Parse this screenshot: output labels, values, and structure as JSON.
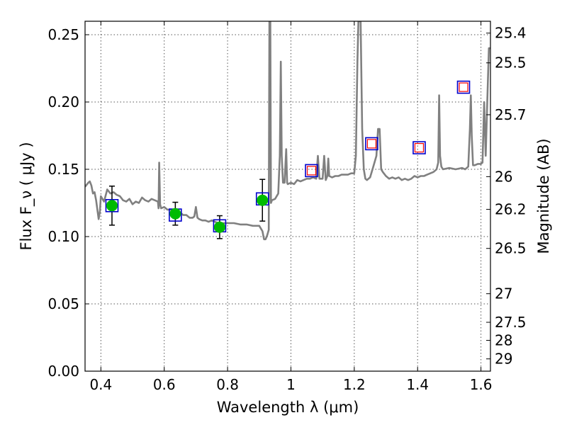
{
  "chart_data": {
    "type": "line",
    "xlabel": "Wavelength  λ (μm)",
    "ylabel": "Flux  F_ν  ( μJy )",
    "y2label": "Magnitude (AB)",
    "xlim": [
      0.35,
      1.63
    ],
    "ylim": [
      0.0,
      0.26
    ],
    "grid": true,
    "x_ticks": [
      {
        "value": 0.4,
        "label": "0.4"
      },
      {
        "value": 0.6,
        "label": "0.6"
      },
      {
        "value": 0.8,
        "label": "0.8"
      },
      {
        "value": 1.0,
        "label": "1"
      },
      {
        "value": 1.2,
        "label": "1.2"
      },
      {
        "value": 1.4,
        "label": "1.4"
      },
      {
        "value": 1.6,
        "label": "1.6"
      }
    ],
    "y_ticks": [
      {
        "value": 0.0,
        "label": "0.00"
      },
      {
        "value": 0.05,
        "label": "0.05"
      },
      {
        "value": 0.1,
        "label": "0.10"
      },
      {
        "value": 0.15,
        "label": "0.15"
      },
      {
        "value": 0.2,
        "label": "0.20"
      },
      {
        "value": 0.25,
        "label": "0.25"
      }
    ],
    "mag_ticks": [
      {
        "value": 25.4,
        "label": "25.4"
      },
      {
        "value": 25.5,
        "label": "25.5"
      },
      {
        "value": 25.7,
        "label": "25.7"
      },
      {
        "value": 26,
        "label": "26"
      },
      {
        "value": 26.2,
        "label": "26.2"
      },
      {
        "value": 26.5,
        "label": "26.5"
      },
      {
        "value": 27,
        "label": "27"
      },
      {
        "value": 27.5,
        "label": "27.5"
      },
      {
        "value": 28,
        "label": "28"
      },
      {
        "value": 29,
        "label": "29"
      }
    ],
    "model_spectrum": {
      "color": "#808080",
      "points": [
        [
          0.35,
          0.137
        ],
        [
          0.36,
          0.14
        ],
        [
          0.365,
          0.141
        ],
        [
          0.37,
          0.138
        ],
        [
          0.375,
          0.132
        ],
        [
          0.38,
          0.133
        ],
        [
          0.385,
          0.127
        ],
        [
          0.39,
          0.118
        ],
        [
          0.393,
          0.113
        ],
        [
          0.397,
          0.119
        ],
        [
          0.4,
          0.13
        ],
        [
          0.41,
          0.126
        ],
        [
          0.42,
          0.135
        ],
        [
          0.43,
          0.132
        ],
        [
          0.44,
          0.133
        ],
        [
          0.45,
          0.131
        ],
        [
          0.46,
          0.13
        ],
        [
          0.47,
          0.127
        ],
        [
          0.48,
          0.126
        ],
        [
          0.49,
          0.128
        ],
        [
          0.5,
          0.124
        ],
        [
          0.51,
          0.126
        ],
        [
          0.52,
          0.125
        ],
        [
          0.53,
          0.129
        ],
        [
          0.54,
          0.127
        ],
        [
          0.55,
          0.126
        ],
        [
          0.56,
          0.128
        ],
        [
          0.57,
          0.127
        ],
        [
          0.58,
          0.126
        ],
        [
          0.582,
          0.121
        ],
        [
          0.584,
          0.155
        ],
        [
          0.587,
          0.124
        ],
        [
          0.59,
          0.121
        ],
        [
          0.6,
          0.122
        ],
        [
          0.61,
          0.12
        ],
        [
          0.62,
          0.12
        ],
        [
          0.63,
          0.12
        ],
        [
          0.64,
          0.119
        ],
        [
          0.65,
          0.118
        ],
        [
          0.66,
          0.116
        ],
        [
          0.67,
          0.116
        ],
        [
          0.68,
          0.114
        ],
        [
          0.69,
          0.114
        ],
        [
          0.695,
          0.115
        ],
        [
          0.7,
          0.122
        ],
        [
          0.705,
          0.114
        ],
        [
          0.71,
          0.113
        ],
        [
          0.72,
          0.112
        ],
        [
          0.73,
          0.112
        ],
        [
          0.74,
          0.111
        ],
        [
          0.75,
          0.112
        ],
        [
          0.76,
          0.111
        ],
        [
          0.77,
          0.11
        ],
        [
          0.78,
          0.11
        ],
        [
          0.79,
          0.11
        ],
        [
          0.8,
          0.11
        ],
        [
          0.82,
          0.11
        ],
        [
          0.84,
          0.109
        ],
        [
          0.86,
          0.109
        ],
        [
          0.88,
          0.108
        ],
        [
          0.9,
          0.108
        ],
        [
          0.91,
          0.104
        ],
        [
          0.915,
          0.098
        ],
        [
          0.92,
          0.098
        ],
        [
          0.925,
          0.101
        ],
        [
          0.93,
          0.105
        ],
        [
          0.932,
          0.26
        ],
        [
          0.935,
          0.26
        ],
        [
          0.937,
          0.125
        ],
        [
          0.94,
          0.127
        ],
        [
          0.95,
          0.128
        ],
        [
          0.96,
          0.132
        ],
        [
          0.965,
          0.16
        ],
        [
          0.968,
          0.23
        ],
        [
          0.971,
          0.16
        ],
        [
          0.975,
          0.14
        ],
        [
          0.98,
          0.14
        ],
        [
          0.985,
          0.165
        ],
        [
          0.988,
          0.14
        ],
        [
          0.99,
          0.139
        ],
        [
          1.0,
          0.14
        ],
        [
          1.01,
          0.139
        ],
        [
          1.02,
          0.142
        ],
        [
          1.03,
          0.141
        ],
        [
          1.04,
          0.142
        ],
        [
          1.05,
          0.143
        ],
        [
          1.06,
          0.143
        ],
        [
          1.07,
          0.144
        ],
        [
          1.08,
          0.143
        ],
        [
          1.085,
          0.16
        ],
        [
          1.09,
          0.143
        ],
        [
          1.1,
          0.143
        ],
        [
          1.105,
          0.16
        ],
        [
          1.11,
          0.142
        ],
        [
          1.115,
          0.145
        ],
        [
          1.118,
          0.158
        ],
        [
          1.121,
          0.145
        ],
        [
          1.13,
          0.144
        ],
        [
          1.14,
          0.145
        ],
        [
          1.15,
          0.145
        ],
        [
          1.16,
          0.146
        ],
        [
          1.17,
          0.146
        ],
        [
          1.18,
          0.146
        ],
        [
          1.19,
          0.147
        ],
        [
          1.2,
          0.147
        ],
        [
          1.205,
          0.16
        ],
        [
          1.21,
          0.23
        ],
        [
          1.213,
          0.26
        ],
        [
          1.22,
          0.26
        ],
        [
          1.225,
          0.18
        ],
        [
          1.23,
          0.15
        ],
        [
          1.235,
          0.143
        ],
        [
          1.24,
          0.142
        ],
        [
          1.25,
          0.144
        ],
        [
          1.26,
          0.152
        ],
        [
          1.27,
          0.16
        ],
        [
          1.275,
          0.18
        ],
        [
          1.28,
          0.18
        ],
        [
          1.285,
          0.15
        ],
        [
          1.29,
          0.148
        ],
        [
          1.3,
          0.145
        ],
        [
          1.31,
          0.143
        ],
        [
          1.32,
          0.144
        ],
        [
          1.33,
          0.143
        ],
        [
          1.34,
          0.144
        ],
        [
          1.35,
          0.142
        ],
        [
          1.36,
          0.143
        ],
        [
          1.37,
          0.142
        ],
        [
          1.38,
          0.143
        ],
        [
          1.39,
          0.145
        ],
        [
          1.4,
          0.144
        ],
        [
          1.41,
          0.145
        ],
        [
          1.42,
          0.145
        ],
        [
          1.43,
          0.146
        ],
        [
          1.44,
          0.147
        ],
        [
          1.45,
          0.148
        ],
        [
          1.46,
          0.15
        ],
        [
          1.465,
          0.155
        ],
        [
          1.468,
          0.205
        ],
        [
          1.471,
          0.16
        ],
        [
          1.475,
          0.152
        ],
        [
          1.48,
          0.15
        ],
        [
          1.5,
          0.151
        ],
        [
          1.52,
          0.15
        ],
        [
          1.54,
          0.151
        ],
        [
          1.55,
          0.15
        ],
        [
          1.56,
          0.152
        ],
        [
          1.565,
          0.18
        ],
        [
          1.568,
          0.205
        ],
        [
          1.571,
          0.175
        ],
        [
          1.575,
          0.153
        ],
        [
          1.58,
          0.153
        ],
        [
          1.59,
          0.154
        ],
        [
          1.6,
          0.154
        ],
        [
          1.605,
          0.155
        ],
        [
          1.61,
          0.2
        ],
        [
          1.615,
          0.16
        ],
        [
          1.62,
          0.2
        ],
        [
          1.625,
          0.24
        ],
        [
          1.63,
          0.24
        ]
      ]
    },
    "observed_photometry": {
      "color": "#00bb00",
      "points": [
        {
          "x": 0.435,
          "y": 0.123,
          "err": 0.0145
        },
        {
          "x": 0.635,
          "y": 0.117,
          "err": 0.0085
        },
        {
          "x": 0.775,
          "y": 0.107,
          "err": 0.0085
        },
        {
          "x": 0.91,
          "y": 0.127,
          "err": 0.0155
        }
      ]
    },
    "model_photometry": {
      "color": "#0000cc",
      "points": [
        {
          "x": 0.435,
          "y": 0.123
        },
        {
          "x": 0.635,
          "y": 0.116
        },
        {
          "x": 0.775,
          "y": 0.108
        },
        {
          "x": 0.91,
          "y": 0.128
        },
        {
          "x": 1.065,
          "y": 0.149
        },
        {
          "x": 1.255,
          "y": 0.169
        },
        {
          "x": 1.405,
          "y": 0.166
        },
        {
          "x": 1.545,
          "y": 0.211
        }
      ]
    },
    "upper_limits": {
      "color": "#ff0000",
      "points": [
        {
          "x": 1.065,
          "y": 0.149
        },
        {
          "x": 1.255,
          "y": 0.169
        },
        {
          "x": 1.405,
          "y": 0.166
        },
        {
          "x": 1.545,
          "y": 0.211
        }
      ]
    }
  }
}
